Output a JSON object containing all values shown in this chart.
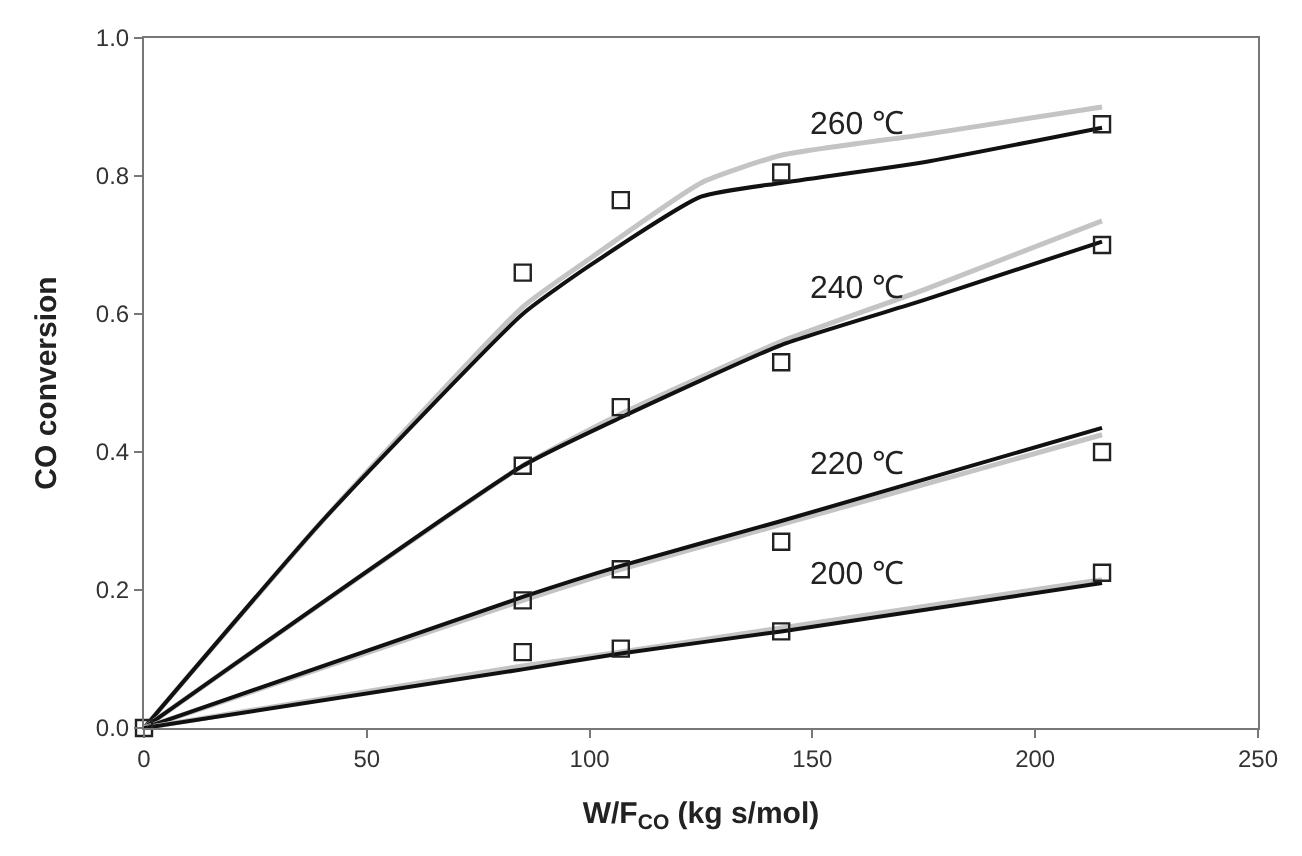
{
  "chart_data": {
    "type": "line",
    "xlabel": "W/F$_{CO}$ (kg s/mol)",
    "ylabel": "CO conversion",
    "xlim": [
      0,
      250
    ],
    "xticks": [
      0,
      50,
      100,
      150,
      200,
      250
    ],
    "ylim": [
      0,
      1.0
    ],
    "yticks": [
      {
        "value": 0,
        "label": "0.0"
      },
      {
        "value": 0.2,
        "label": "0.2"
      },
      {
        "value": 0.4,
        "label": "0.4"
      },
      {
        "value": 0.6,
        "label": "0.6"
      },
      {
        "value": 0.8,
        "label": "0.8"
      },
      {
        "value": 1.0,
        "label": "1.0"
      }
    ],
    "legend": false,
    "series": [
      {
        "color": "#c4c4c4",
        "marker": "none",
        "x": [
          0,
          40,
          85,
          100,
          125,
          143,
          175,
          215
        ],
        "values": [
          0,
          0.3,
          0.61,
          0.68,
          0.79,
          0.83,
          0.86,
          0.9
        ]
      },
      {
        "name": "260 ℃",
        "color": "#111111",
        "marker": "none",
        "x": [
          0,
          40,
          85,
          100,
          125,
          143,
          175,
          215
        ],
        "values": [
          0,
          0.3,
          0.6,
          0.67,
          0.77,
          0.79,
          0.82,
          0.87
        ]
      },
      {
        "color": "#c4c4c4",
        "marker": "none",
        "x": [
          0,
          85,
          107,
          143,
          175,
          215
        ],
        "values": [
          0,
          0.38,
          0.455,
          0.56,
          0.635,
          0.735
        ]
      },
      {
        "name": "240 ℃",
        "color": "#111111",
        "marker": "none",
        "x": [
          0,
          85,
          107,
          143,
          175,
          215
        ],
        "values": [
          0,
          0.38,
          0.45,
          0.555,
          0.62,
          0.705
        ]
      },
      {
        "color": "#c4c4c4",
        "marker": "none",
        "x": [
          0,
          85,
          107,
          143,
          215
        ],
        "values": [
          0,
          0.185,
          0.23,
          0.295,
          0.425
        ]
      },
      {
        "name": "220 ℃",
        "color": "#111111",
        "marker": "none",
        "x": [
          0,
          85,
          107,
          143,
          215
        ],
        "values": [
          0,
          0.19,
          0.235,
          0.3,
          0.435
        ]
      },
      {
        "color": "#c4c4c4",
        "marker": "none",
        "x": [
          0,
          85,
          107,
          143,
          215
        ],
        "values": [
          0,
          0.09,
          0.11,
          0.145,
          0.215
        ]
      },
      {
        "name": "200 ℃",
        "color": "#111111",
        "marker": "none",
        "x": [
          0,
          85,
          107,
          143,
          215
        ],
        "values": [
          0,
          0.085,
          0.108,
          0.14,
          0.21
        ]
      },
      {
        "type": "scatter",
        "color": "#222222",
        "marker": "square",
        "x": [
          0,
          85,
          107,
          143,
          215
        ],
        "values": [
          0,
          0.66,
          0.765,
          0.805,
          0.875
        ]
      },
      {
        "type": "scatter",
        "color": "#222222",
        "marker": "square",
        "x": [
          85,
          107,
          143,
          215
        ],
        "values": [
          0.38,
          0.465,
          0.53,
          0.7
        ]
      },
      {
        "type": "scatter",
        "color": "#222222",
        "marker": "square",
        "x": [
          85,
          107,
          143,
          215
        ],
        "values": [
          0.185,
          0.23,
          0.27,
          0.4
        ]
      },
      {
        "type": "scatter",
        "color": "#222222",
        "marker": "square",
        "x": [
          85,
          107,
          143,
          215
        ],
        "values": [
          0.11,
          0.115,
          0.14,
          0.225
        ]
      }
    ]
  }
}
